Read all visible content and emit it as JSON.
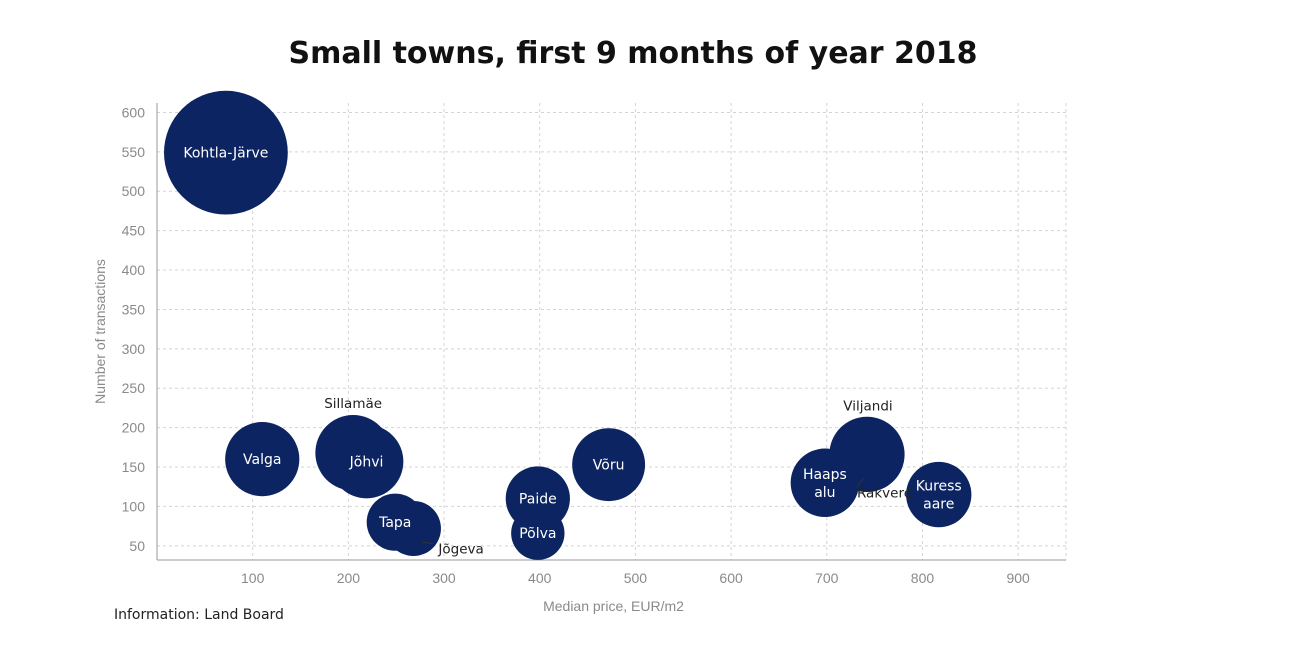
{
  "title": "Small towns, first 9 months of year 2018",
  "source": "Information: Land Board",
  "chart_data": {
    "type": "scatter",
    "title": "Small towns, first 9 months of year 2018",
    "xlabel": "Median price, EUR/m2",
    "ylabel": "Number of transactions",
    "xlim": [
      0,
      950
    ],
    "ylim": [
      32,
      612
    ],
    "xticks": [
      "100",
      "200",
      "300",
      "400",
      "500",
      "600",
      "700",
      "800",
      "900"
    ],
    "yticks": [
      "50",
      "100",
      "150",
      "200",
      "250",
      "300",
      "350",
      "400",
      "450",
      "500",
      "550",
      "600"
    ],
    "grid": true,
    "color": "#0c2461",
    "series": [
      {
        "points": [
          {
            "name": "Kohtla-Järve",
            "x": 72,
            "y": 549,
            "label": [
              "Kohtla-Järve"
            ],
            "outside": false
          },
          {
            "name": "Valga",
            "x": 110,
            "y": 160,
            "label": [
              "Valga"
            ],
            "outside": false
          },
          {
            "name": "Sillamäe",
            "x": 205,
            "y": 168,
            "label": [
              "Sillamäe"
            ],
            "outside": true
          },
          {
            "name": "Jõhvi",
            "x": 219,
            "y": 157,
            "label": [
              "Jõhvi"
            ],
            "outside": false
          },
          {
            "name": "Tapa",
            "x": 249,
            "y": 80,
            "label": [
              "Tapa"
            ],
            "outside": false
          },
          {
            "name": "Jõgeva",
            "x": 268,
            "y": 72,
            "label": [
              "Jõgeva"
            ],
            "outside": true
          },
          {
            "name": "Paide",
            "x": 398,
            "y": 110,
            "label": [
              "Paide"
            ],
            "outside": false
          },
          {
            "name": "Põlva",
            "x": 398,
            "y": 66,
            "label": [
              "Põlva"
            ],
            "outside": false
          },
          {
            "name": "Võru",
            "x": 472,
            "y": 153,
            "label": [
              "Võru"
            ],
            "outside": false
          },
          {
            "name": "Haapsalu",
            "x": 698,
            "y": 130,
            "label": [
              "Haaps",
              "alu"
            ],
            "outside": false
          },
          {
            "name": "Viljandi",
            "x": 742,
            "y": 166,
            "label": [
              "Viljandi"
            ],
            "outside": true
          },
          {
            "name": "Rakvere",
            "x": 742,
            "y": 166,
            "label": [
              "Rakvere"
            ],
            "outside": true
          },
          {
            "name": "Kuressaare",
            "x": 817,
            "y": 115,
            "label": [
              "Kuress",
              "aare"
            ],
            "outside": false
          }
        ]
      }
    ]
  }
}
